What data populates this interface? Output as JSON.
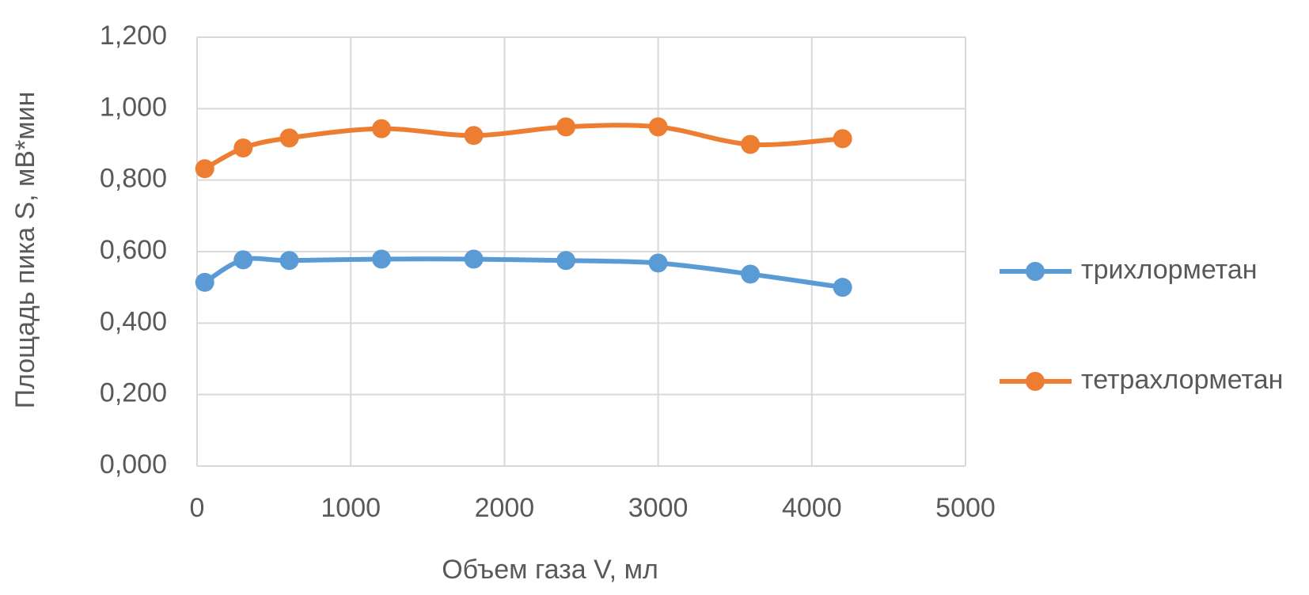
{
  "chart_data": {
    "type": "scatter_line",
    "x_label": "Объем газа V, мл",
    "y_label": "Площадь пика S, мВ*мин",
    "x": [
      50,
      300,
      600,
      1200,
      1800,
      2400,
      3000,
      3600,
      4200
    ],
    "series": [
      {
        "name": "трихлорметан",
        "color": "#5b9bd5",
        "values": [
          0.514,
          0.577,
          0.575,
          0.579,
          0.579,
          0.575,
          0.568,
          0.537,
          0.5
        ]
      },
      {
        "name": "тетрахлорметан",
        "color": "#ed7d31",
        "values": [
          0.832,
          0.89,
          0.918,
          0.944,
          0.925,
          0.949,
          0.949,
          0.9,
          0.916
        ]
      }
    ],
    "xlim": [
      0,
      5000
    ],
    "xticks": [
      0,
      1000,
      2000,
      3000,
      4000,
      5000
    ],
    "ylim": [
      0,
      1.2
    ],
    "yticks": [
      {
        "value": 0,
        "label": "0,000"
      },
      {
        "value": 0.2,
        "label": "0,200"
      },
      {
        "value": 0.4,
        "label": "0,400"
      },
      {
        "value": 0.6,
        "label": "0,600"
      },
      {
        "value": 0.8,
        "label": "0,800"
      },
      {
        "value": 1.0,
        "label": "1,000"
      },
      {
        "value": 1.2,
        "label": "1,200"
      }
    ],
    "grid": true,
    "legend": "right"
  }
}
